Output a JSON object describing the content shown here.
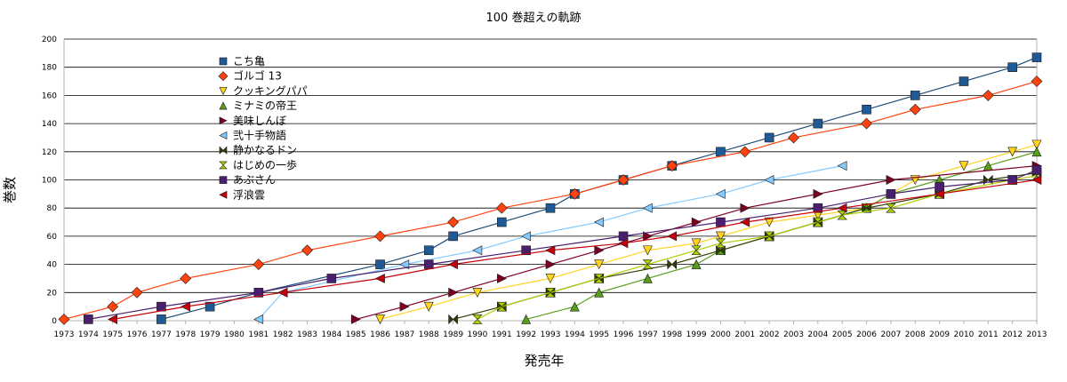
{
  "chart_data": {
    "type": "line",
    "title": "100 巻超えの軌跡",
    "xlabel": "発売年",
    "ylabel": "巻数",
    "xlim": [
      1973,
      2013
    ],
    "ylim": [
      0,
      200
    ],
    "y_ticks": [
      0,
      20,
      40,
      60,
      80,
      100,
      120,
      140,
      160,
      180,
      200
    ],
    "x_ticks": [
      1973,
      1974,
      1975,
      1976,
      1977,
      1978,
      1979,
      1980,
      1981,
      1982,
      1983,
      1984,
      1985,
      1986,
      1987,
      1988,
      1989,
      1990,
      1991,
      1992,
      1993,
      1994,
      1995,
      1996,
      1997,
      1998,
      1999,
      2000,
      2001,
      2002,
      2003,
      2004,
      2005,
      2006,
      2007,
      2008,
      2009,
      2010,
      2011,
      2012,
      2013
    ],
    "grid": "horizontal",
    "legend_position": "upper-left",
    "series": [
      {
        "name": "こち亀",
        "color": "#1f4e79",
        "marker": "square",
        "marker_color": "#1f5a96",
        "points": [
          [
            1977,
            1
          ],
          [
            1979,
            10
          ],
          [
            1981,
            20
          ],
          [
            1986,
            40
          ],
          [
            1988,
            50
          ],
          [
            1989,
            60
          ],
          [
            1991,
            70
          ],
          [
            1993,
            80
          ],
          [
            1994,
            90
          ],
          [
            1996,
            100
          ],
          [
            1998,
            110
          ],
          [
            2000,
            120
          ],
          [
            2002,
            130
          ],
          [
            2004,
            140
          ],
          [
            2006,
            150
          ],
          [
            2008,
            160
          ],
          [
            2010,
            170
          ],
          [
            2012,
            180
          ],
          [
            2013,
            187
          ]
        ]
      },
      {
        "name": "ゴルゴ 13",
        "color": "#ff420e",
        "marker": "diamond",
        "marker_color": "#ff420e",
        "points": [
          [
            1973,
            1
          ],
          [
            1975,
            10
          ],
          [
            1976,
            20
          ],
          [
            1978,
            30
          ],
          [
            1981,
            40
          ],
          [
            1983,
            50
          ],
          [
            1986,
            60
          ],
          [
            1989,
            70
          ],
          [
            1991,
            80
          ],
          [
            1994,
            90
          ],
          [
            1996,
            100
          ],
          [
            1998,
            110
          ],
          [
            2001,
            120
          ],
          [
            2003,
            130
          ],
          [
            2006,
            140
          ],
          [
            2008,
            150
          ],
          [
            2011,
            160
          ],
          [
            2013,
            170
          ]
        ]
      },
      {
        "name": "クッキングパパ",
        "color": "#ffd320",
        "marker": "triangle-down",
        "marker_color": "#ffd320",
        "points": [
          [
            1986,
            1
          ],
          [
            1988,
            10
          ],
          [
            1990,
            20
          ],
          [
            1993,
            30
          ],
          [
            1995,
            40
          ],
          [
            1997,
            50
          ],
          [
            1999,
            55
          ],
          [
            2000,
            60
          ],
          [
            2002,
            70
          ],
          [
            2004,
            75
          ],
          [
            2006,
            80
          ],
          [
            2008,
            100
          ],
          [
            2010,
            110
          ],
          [
            2012,
            120
          ],
          [
            2013,
            125
          ]
        ]
      },
      {
        "name": "ミナミの帝王",
        "color": "#579d1c",
        "marker": "triangle-up",
        "marker_color": "#579d1c",
        "points": [
          [
            1992,
            1
          ],
          [
            1994,
            10
          ],
          [
            1995,
            20
          ],
          [
            1997,
            30
          ],
          [
            1999,
            40
          ],
          [
            2000,
            50
          ],
          [
            2002,
            60
          ],
          [
            2004,
            70
          ],
          [
            2006,
            80
          ],
          [
            2007,
            90
          ],
          [
            2009,
            100
          ],
          [
            2011,
            110
          ],
          [
            2013,
            120
          ]
        ]
      },
      {
        "name": "美味しんぼ",
        "color": "#7e0021",
        "marker": "triangle-right",
        "marker_color": "#7e0021",
        "points": [
          [
            1985,
            1
          ],
          [
            1987,
            10
          ],
          [
            1989,
            20
          ],
          [
            1991,
            30
          ],
          [
            1993,
            40
          ],
          [
            1995,
            50
          ],
          [
            1997,
            60
          ],
          [
            1999,
            70
          ],
          [
            2001,
            80
          ],
          [
            2004,
            90
          ],
          [
            2007,
            100
          ],
          [
            2013,
            110
          ]
        ]
      },
      {
        "name": "弐十手物語",
        "color": "#83caff",
        "marker": "triangle-left",
        "marker_color": "#83caff",
        "points": [
          [
            1981,
            1
          ],
          [
            1982,
            20
          ],
          [
            1987,
            40
          ],
          [
            1990,
            50
          ],
          [
            1992,
            60
          ],
          [
            1995,
            70
          ],
          [
            1997,
            80
          ],
          [
            2000,
            90
          ],
          [
            2002,
            100
          ],
          [
            2005,
            110
          ]
        ]
      },
      {
        "name": "静かなるドン",
        "color": "#314004",
        "marker": "bowtie",
        "marker_color": "#314004",
        "points": [
          [
            1989,
            1
          ],
          [
            1991,
            10
          ],
          [
            1993,
            20
          ],
          [
            1995,
            30
          ],
          [
            1998,
            40
          ],
          [
            2000,
            50
          ],
          [
            2002,
            60
          ],
          [
            2004,
            70
          ],
          [
            2006,
            80
          ],
          [
            2009,
            90
          ],
          [
            2011,
            100
          ],
          [
            2013,
            105
          ]
        ]
      },
      {
        "name": "はじめの一歩",
        "color": "#aecf00",
        "marker": "hourglass",
        "marker_color": "#aecf00",
        "points": [
          [
            1990,
            1
          ],
          [
            1991,
            10
          ],
          [
            1993,
            20
          ],
          [
            1995,
            30
          ],
          [
            1997,
            40
          ],
          [
            1999,
            50
          ],
          [
            2000,
            55
          ],
          [
            2002,
            60
          ],
          [
            2004,
            70
          ],
          [
            2005,
            75
          ],
          [
            2007,
            80
          ],
          [
            2009,
            90
          ],
          [
            2012,
            100
          ],
          [
            2013,
            103
          ]
        ]
      },
      {
        "name": "あぶさん",
        "color": "#4b1f6f",
        "marker": "square",
        "marker_color": "#4b1f6f",
        "points": [
          [
            1974,
            1
          ],
          [
            1977,
            10
          ],
          [
            1981,
            20
          ],
          [
            1984,
            30
          ],
          [
            1988,
            40
          ],
          [
            1992,
            50
          ],
          [
            1996,
            60
          ],
          [
            2000,
            70
          ],
          [
            2004,
            80
          ],
          [
            2007,
            90
          ],
          [
            2009,
            95
          ],
          [
            2012,
            100
          ],
          [
            2013,
            107
          ]
        ]
      },
      {
        "name": "浮浪雲",
        "color": "#c5000b",
        "marker": "triangle-left",
        "marker_color": "#c5000b",
        "points": [
          [
            1975,
            1
          ],
          [
            1978,
            10
          ],
          [
            1982,
            20
          ],
          [
            1986,
            30
          ],
          [
            1989,
            40
          ],
          [
            1993,
            50
          ],
          [
            1996,
            55
          ],
          [
            1998,
            60
          ],
          [
            2001,
            70
          ],
          [
            2005,
            80
          ],
          [
            2009,
            90
          ],
          [
            2013,
            100
          ]
        ]
      }
    ]
  }
}
